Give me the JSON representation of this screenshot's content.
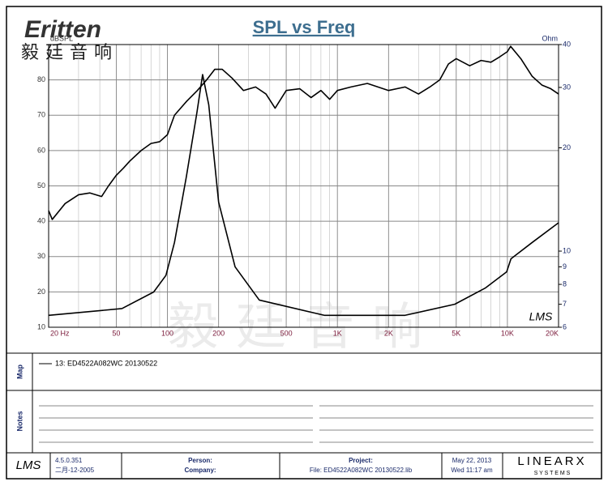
{
  "header": {
    "logo": "Eritten",
    "logo_cn": "毅廷音响",
    "watermark": "毅廷音响"
  },
  "chart_data": {
    "type": "line",
    "title": "SPL vs Freq",
    "ylabel": "dBSPL",
    "y2label": "Ohm",
    "plot_logo": "LMS",
    "xscale": "log",
    "y2scale": "log",
    "grid": true,
    "minor_grid": true,
    "xlim": [
      20,
      20000
    ],
    "ylim": [
      10,
      90
    ],
    "y2lim": [
      6,
      40
    ],
    "xticks": [
      {
        "value": 20,
        "label": "20 Hz"
      },
      50,
      100,
      200,
      500,
      {
        "value": 1000,
        "label": "1K"
      },
      {
        "value": 2000,
        "label": "2K"
      },
      {
        "value": 5000,
        "label": "5K"
      },
      {
        "value": 10000,
        "label": "10K"
      },
      {
        "value": 20000,
        "label": "20K"
      }
    ],
    "yticks": [
      10,
      20,
      30,
      40,
      50,
      60,
      70,
      80
    ],
    "y2ticks": [
      6,
      7,
      8,
      9,
      10,
      20,
      30,
      40
    ],
    "series": [
      {
        "color": "#000000",
        "x": [
          20,
          21,
          25,
          30,
          35,
          41,
          45,
          50,
          55,
          60,
          70,
          80,
          90,
          100,
          110,
          130,
          150,
          170,
          190,
          210,
          240,
          280,
          330,
          380,
          430,
          500,
          600,
          700,
          800,
          900,
          1000,
          1200,
          1500,
          2000,
          2500,
          3000,
          3500,
          4000,
          4500,
          5000,
          6000,
          7000,
          8000,
          9000,
          10000,
          10450,
          12000,
          14000,
          16000,
          18000,
          20000
        ],
        "values": [
          43,
          40.5,
          45,
          47.5,
          48,
          47,
          50,
          53,
          55,
          57,
          60,
          62,
          62.5,
          64.5,
          70,
          74,
          77,
          80,
          83,
          83,
          80.5,
          77,
          78,
          76,
          72,
          77,
          77.5,
          75,
          77,
          74.5,
          77,
          78,
          79,
          77,
          78,
          76,
          78,
          80,
          84.5,
          86,
          84,
          85.5,
          85,
          86.5,
          88,
          89.5,
          86,
          81,
          78.5,
          77.5,
          76
        ]
      },
      {
        "color": "#000000",
        "axis": "y2",
        "x": [
          20,
          54,
          83,
          98,
          110,
          129,
          149,
          161,
          175,
          200,
          250,
          347,
          837,
          2500,
          4900,
          7400,
          9900,
          10500,
          14000,
          20000
        ],
        "values": [
          6.5,
          6.8,
          7.6,
          8.5,
          10.6,
          16.4,
          25.3,
          32.7,
          26.7,
          13.9,
          9.0,
          7.2,
          6.5,
          6.5,
          7.0,
          7.8,
          8.7,
          9.5,
          10.6,
          12.1
        ]
      }
    ]
  },
  "map": {
    "label": "Map",
    "entries": [
      "13: ED4522A082WC   20130522"
    ]
  },
  "notes": {
    "label": "Notes"
  },
  "footer": {
    "logo": "LMS",
    "version": "4.5.0.351",
    "build_date": "二月-12-2005",
    "person": "Person:",
    "company": "Company:",
    "project": "Project:",
    "file": "File: ED4522A082WC  20130522.lib",
    "date": "May 22, 2013",
    "time": "Wed 11:17 am",
    "brand": "LINEARX",
    "brand_sub": "S Y S T E M S"
  }
}
